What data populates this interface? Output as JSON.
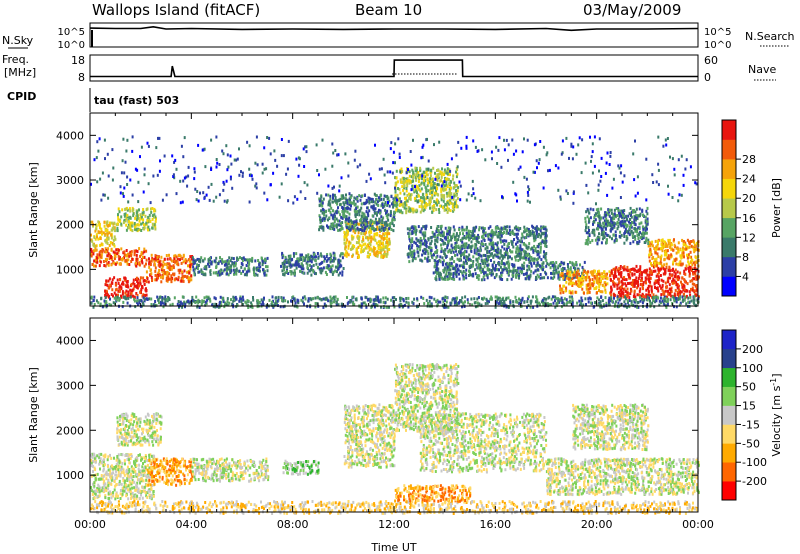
{
  "header": {
    "station": "Wallops Island (fitACF)",
    "beam": "Beam 10",
    "date": "03/May/2009"
  },
  "strips": {
    "nsky_label": "N.Sky",
    "nsearch_label": "N.Search",
    "freq_label": "Freq.",
    "freq_unit": "[MHz]",
    "nave_label": "Nave",
    "cpid_label": "CPID",
    "cpid_text": "tau (fast) 503",
    "nsky_ticks": [
      "10^5",
      "10^0"
    ],
    "nsearch_ticks": [
      "10^5",
      "10^0"
    ],
    "freq_ticks": [
      "18",
      "8"
    ],
    "nave_ticks": [
      "60",
      "0"
    ]
  },
  "colors": {
    "power": [
      "#0000ff",
      "#2c3fa6",
      "#3a7a6a",
      "#57a463",
      "#b7c94a",
      "#f5d60a",
      "#f5a30a",
      "#f25b0a",
      "#e8150f"
    ],
    "velocity": [
      "#ff0000",
      "#ff6600",
      "#ffaa00",
      "#ffd966",
      "#c8c8c8",
      "#7fd15a",
      "#2db32d",
      "#28418c",
      "#1e24c8"
    ]
  },
  "chart_data": [
    {
      "type": "line",
      "title": "",
      "series": [
        {
          "name": "N.Sky",
          "x": [
            0,
            1,
            2,
            2.5,
            3,
            4,
            6,
            8,
            10,
            12,
            14,
            16,
            18,
            19,
            20,
            22,
            24
          ],
          "y": [
            4.3,
            4.2,
            4.2,
            4.6,
            4.1,
            4.2,
            4.0,
            4.1,
            4.0,
            4.1,
            4.1,
            4.0,
            4.2,
            3.8,
            4.1,
            4.1,
            4.2
          ]
        },
        {
          "name": "Freq.",
          "x": [
            0,
            3.2,
            3.25,
            3.35,
            3.4,
            12,
            12.01,
            14.7,
            14.71,
            24
          ],
          "y": [
            10.5,
            10.5,
            14.5,
            10.5,
            10.5,
            10.5,
            16.8,
            16.8,
            10.5,
            10.5
          ]
        }
      ],
      "xlim": [
        0,
        24
      ],
      "ylim": [
        0,
        18
      ]
    },
    {
      "type": "heatmap",
      "xlabel": "",
      "ylabel": "Slant Range [km]",
      "colorbar_label": "Power [dB]",
      "colorbar_ticks": [
        "4",
        "8",
        "12",
        "16",
        "20",
        "24",
        "28"
      ],
      "xlim": [
        0,
        24
      ],
      "ylim": [
        180,
        4500
      ],
      "yticks": [
        "1000",
        "2000",
        "3000",
        "4000"
      ],
      "blobs": [
        {
          "t0": 0.0,
          "t1": 2.2,
          "r0": 1100,
          "r1": 1500,
          "level": 7
        },
        {
          "t0": 0.5,
          "t1": 2.2,
          "r0": 400,
          "r1": 850,
          "level": 8
        },
        {
          "t0": 0.0,
          "t1": 1.0,
          "r0": 1550,
          "r1": 2100,
          "level": 5
        },
        {
          "t0": 1.0,
          "t1": 2.6,
          "r0": 1900,
          "r1": 2400,
          "level": 4
        },
        {
          "t0": 2.2,
          "t1": 4.0,
          "r0": 750,
          "r1": 1350,
          "level": 7
        },
        {
          "t0": 4.0,
          "t1": 7.0,
          "r0": 900,
          "r1": 1300,
          "level": 2
        },
        {
          "t0": 7.5,
          "t1": 10.0,
          "r0": 900,
          "r1": 1400,
          "level": 2
        },
        {
          "t0": 10.0,
          "t1": 11.8,
          "r0": 1300,
          "r1": 2100,
          "level": 5
        },
        {
          "t0": 9.0,
          "t1": 12.0,
          "r0": 1900,
          "r1": 2700,
          "level": 2
        },
        {
          "t0": 12.0,
          "t1": 14.5,
          "r0": 2300,
          "r1": 3300,
          "level": 4
        },
        {
          "t0": 12.5,
          "t1": 18.0,
          "r0": 1200,
          "r1": 2000,
          "level": 2
        },
        {
          "t0": 13.5,
          "t1": 19.5,
          "r0": 800,
          "r1": 1200,
          "level": 2
        },
        {
          "t0": 18.5,
          "t1": 20.5,
          "r0": 500,
          "r1": 1000,
          "level": 6
        },
        {
          "t0": 20.5,
          "t1": 24.0,
          "r0": 400,
          "r1": 1100,
          "level": 8
        },
        {
          "t0": 22.0,
          "t1": 24.0,
          "r0": 1100,
          "r1": 1700,
          "level": 6
        },
        {
          "t0": 19.5,
          "t1": 22.0,
          "r0": 1600,
          "r1": 2400,
          "level": 2
        },
        {
          "t0": 0.0,
          "t1": 24.0,
          "r0": 180,
          "r1": 420,
          "level": 2
        },
        {
          "t0": 0.0,
          "t1": 24.0,
          "r0": 2500,
          "r1": 4000,
          "level": 1
        }
      ]
    },
    {
      "type": "heatmap",
      "xlabel": "Time UT",
      "ylabel": "Slant Range [km]",
      "colorbar_label": "Velocity [m s^-1]",
      "colorbar_ticks": [
        "-200",
        "-100",
        "-50",
        "-15",
        "15",
        "50",
        "100",
        "200"
      ],
      "xlim": [
        0,
        24
      ],
      "ylim": [
        180,
        4500
      ],
      "yticks": [
        "1000",
        "2000",
        "3000",
        "4000"
      ],
      "xticks": [
        "00:00",
        "04:00",
        "08:00",
        "12:00",
        "16:00",
        "20:00",
        "00:00"
      ],
      "blobs": [
        {
          "t0": 0.0,
          "t1": 2.5,
          "r0": 500,
          "r1": 1500,
          "level": 4
        },
        {
          "t0": 1.0,
          "t1": 2.8,
          "r0": 1700,
          "r1": 2400,
          "level": 4
        },
        {
          "t0": 2.2,
          "t1": 4.0,
          "r0": 800,
          "r1": 1400,
          "level": 2
        },
        {
          "t0": 4.0,
          "t1": 7.0,
          "r0": 900,
          "r1": 1400,
          "level": 4
        },
        {
          "t0": 7.6,
          "t1": 9.0,
          "r0": 1050,
          "r1": 1350,
          "level": 5
        },
        {
          "t0": 10.0,
          "t1": 12.0,
          "r0": 1200,
          "r1": 2600,
          "level": 4
        },
        {
          "t0": 12.0,
          "t1": 14.5,
          "r0": 2000,
          "r1": 3500,
          "level": 4
        },
        {
          "t0": 13.0,
          "t1": 18.0,
          "r0": 1100,
          "r1": 2400,
          "level": 4
        },
        {
          "t0": 18.0,
          "t1": 24.0,
          "r0": 600,
          "r1": 1400,
          "level": 4
        },
        {
          "t0": 19.0,
          "t1": 22.0,
          "r0": 1600,
          "r1": 2600,
          "level": 4
        },
        {
          "t0": 0.0,
          "t1": 24.0,
          "r0": 180,
          "r1": 450,
          "level": 3
        },
        {
          "t0": 12.0,
          "t1": 15.0,
          "r0": 450,
          "r1": 800,
          "level": 2
        }
      ]
    }
  ]
}
